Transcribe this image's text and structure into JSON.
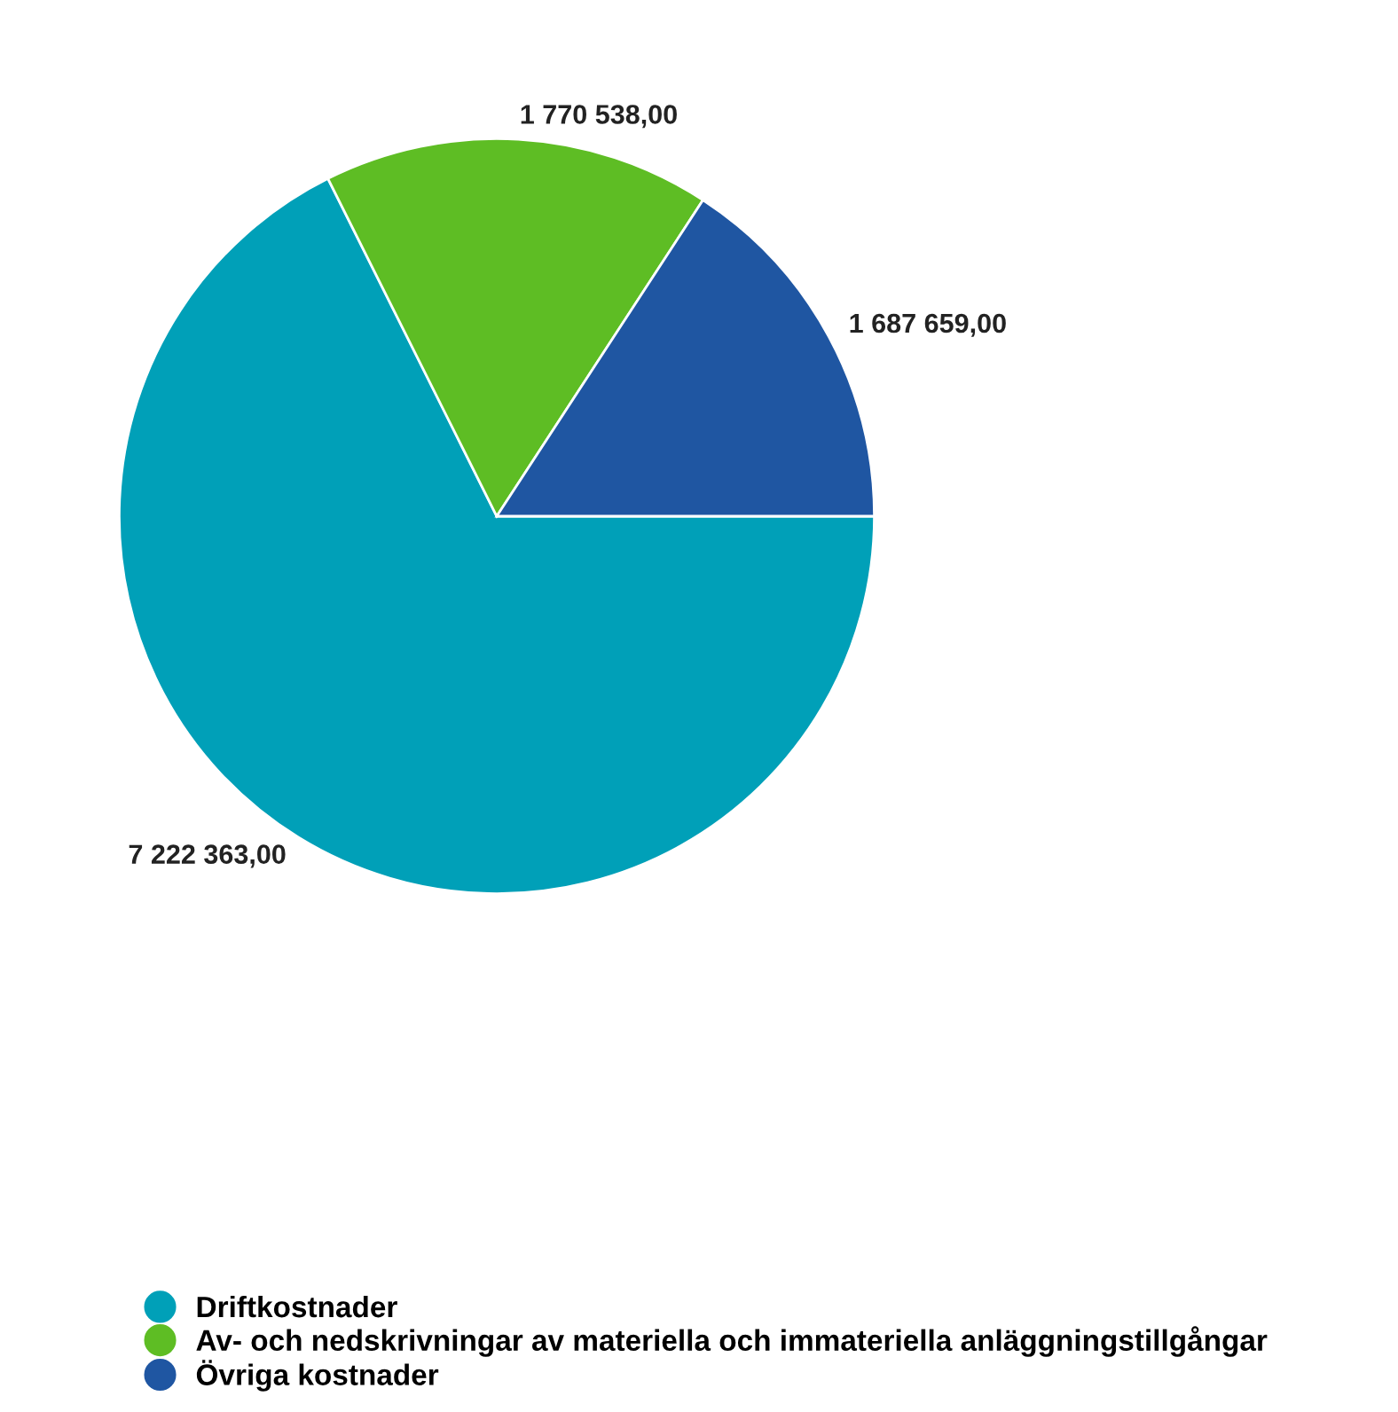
{
  "chart_data": {
    "type": "pie",
    "categories": [
      "Driftkostnader",
      "Av- och nedskrivningar av materiella och immateriella anläggningstillgångar",
      "Övriga kostnader"
    ],
    "values": [
      7222363.0,
      1770538.0,
      1687659.0
    ],
    "colors": [
      "#00a0b8",
      "#5ebd24",
      "#1f56a2"
    ],
    "value_labels": [
      "7 222 363,00",
      "1 770 538,00",
      "1 687 659,00"
    ],
    "legend": "bottom"
  }
}
